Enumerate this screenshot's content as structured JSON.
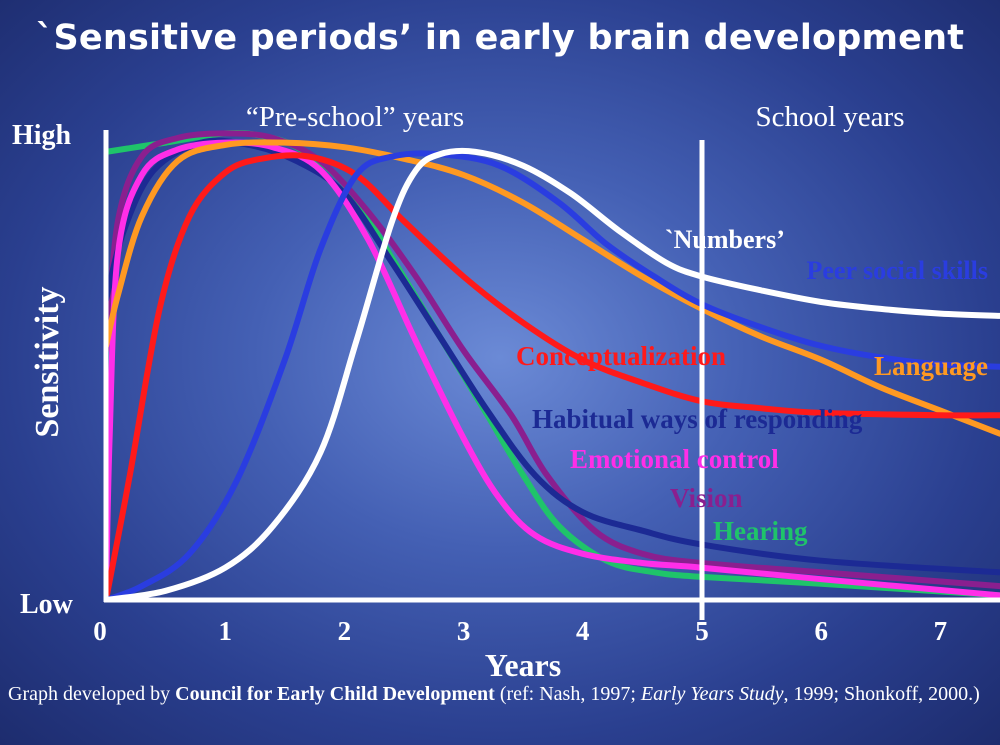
{
  "chart_data": {
    "type": "line",
    "title": "`Sensitive periods’ in early brain development",
    "xlabel": "Years",
    "ylabel": "Sensitivity",
    "x_ticks": [
      "0",
      "1",
      "2",
      "3",
      "4",
      "5",
      "6",
      "7"
    ],
    "xlim": [
      0,
      7.5
    ],
    "ylim": [
      0,
      100
    ],
    "y_ticks": [
      "Low",
      "High"
    ],
    "regions": {
      "preschool": "“Pre-school” years",
      "school": "School years",
      "divider_x": 5
    },
    "series": [
      {
        "name": "Hearing",
        "label": "Hearing",
        "color": "#1fc46a",
        "points": [
          [
            0,
            97
          ],
          [
            0.5,
            99
          ],
          [
            1,
            101
          ],
          [
            1.3,
            100.5
          ],
          [
            1.6,
            98
          ],
          [
            2,
            90
          ],
          [
            2.4,
            74
          ],
          [
            2.8,
            57
          ],
          [
            3.2,
            40
          ],
          [
            3.5,
            27
          ],
          [
            3.8,
            16
          ],
          [
            4.2,
            8.5
          ],
          [
            4.6,
            6
          ],
          [
            5,
            5
          ],
          [
            6,
            3.5
          ],
          [
            7.5,
            1
          ]
        ]
      },
      {
        "name": "Vision",
        "label": "Vision",
        "color": "#8a1f8f",
        "points": [
          [
            0,
            54
          ],
          [
            0.1,
            82
          ],
          [
            0.3,
            96
          ],
          [
            0.6,
            100
          ],
          [
            1,
            101
          ],
          [
            1.4,
            100
          ],
          [
            1.8,
            95
          ],
          [
            2.2,
            84
          ],
          [
            2.6,
            70
          ],
          [
            3,
            54
          ],
          [
            3.4,
            40
          ],
          [
            3.7,
            27
          ],
          [
            4.1,
            15
          ],
          [
            4.5,
            10
          ],
          [
            5,
            8
          ],
          [
            6,
            6
          ],
          [
            7.5,
            3
          ]
        ]
      },
      {
        "name": "Habitual ways of responding",
        "label": "Habitual ways of responding",
        "color": "#1c2a94",
        "points": [
          [
            0,
            65
          ],
          [
            0.15,
            80
          ],
          [
            0.4,
            93
          ],
          [
            0.8,
            99
          ],
          [
            1.2,
            98.5
          ],
          [
            1.6,
            95
          ],
          [
            2,
            88
          ],
          [
            2.4,
            73
          ],
          [
            2.8,
            57
          ],
          [
            3.2,
            41
          ],
          [
            3.6,
            27
          ],
          [
            4,
            19
          ],
          [
            4.5,
            15
          ],
          [
            5,
            12
          ],
          [
            6,
            8.5
          ],
          [
            7.5,
            6
          ]
        ]
      },
      {
        "name": "Emotional control",
        "label": "Emotional control",
        "color": "#ff2ee8",
        "points": [
          [
            0,
            0
          ],
          [
            0.03,
            35
          ],
          [
            0.1,
            75
          ],
          [
            0.3,
            92
          ],
          [
            0.6,
            97.5
          ],
          [
            1,
            99
          ],
          [
            1.4,
            98
          ],
          [
            1.8,
            93
          ],
          [
            2.2,
            78
          ],
          [
            2.6,
            56
          ],
          [
            3,
            35
          ],
          [
            3.3,
            22
          ],
          [
            3.6,
            14
          ],
          [
            4,
            10
          ],
          [
            4.5,
            8
          ],
          [
            5,
            7
          ],
          [
            6,
            4.5
          ],
          [
            7.5,
            1
          ]
        ]
      },
      {
        "name": "Language",
        "label": "Language",
        "color": "#ff9922",
        "points": [
          [
            0,
            55
          ],
          [
            0.1,
            66
          ],
          [
            0.3,
            83
          ],
          [
            0.6,
            95
          ],
          [
            1,
            98.5
          ],
          [
            1.5,
            99
          ],
          [
            2,
            98
          ],
          [
            2.5,
            95.5
          ],
          [
            3,
            92
          ],
          [
            3.5,
            86
          ],
          [
            4,
            78
          ],
          [
            4.5,
            70
          ],
          [
            5,
            63
          ],
          [
            5.5,
            57
          ],
          [
            6,
            52
          ],
          [
            6.5,
            46
          ],
          [
            7,
            41
          ],
          [
            7.5,
            36
          ]
        ]
      },
      {
        "name": "Conceptualization",
        "label": "Conceptualization",
        "color": "#ff1a1a",
        "points": [
          [
            0,
            0
          ],
          [
            0.2,
            27
          ],
          [
            0.45,
            63
          ],
          [
            0.7,
            83
          ],
          [
            1,
            92.5
          ],
          [
            1.3,
            95.5
          ],
          [
            1.7,
            96
          ],
          [
            2.1,
            92
          ],
          [
            2.5,
            82
          ],
          [
            3,
            70
          ],
          [
            3.5,
            60
          ],
          [
            4,
            52
          ],
          [
            4.5,
            47
          ],
          [
            5,
            43
          ],
          [
            5.5,
            41.5
          ],
          [
            6,
            40.5
          ],
          [
            7,
            40
          ],
          [
            7.5,
            40
          ]
        ]
      },
      {
        "name": "Peer social skills",
        "label": "Peer social skills",
        "color": "#2a3de0",
        "points": [
          [
            0,
            0
          ],
          [
            0.3,
            3
          ],
          [
            0.7,
            10
          ],
          [
            1.1,
            26
          ],
          [
            1.5,
            52
          ],
          [
            1.8,
            76
          ],
          [
            2.1,
            92
          ],
          [
            2.4,
            96
          ],
          [
            2.8,
            96.5
          ],
          [
            3.3,
            94
          ],
          [
            3.8,
            86
          ],
          [
            4.2,
            77
          ],
          [
            4.6,
            70
          ],
          [
            5,
            64
          ],
          [
            5.5,
            59
          ],
          [
            6,
            55
          ],
          [
            6.5,
            52.5
          ],
          [
            7,
            51
          ],
          [
            7.5,
            50.5
          ]
        ]
      },
      {
        "name": "`Numbers’",
        "label": "`Numbers’",
        "color": "#ffffff",
        "points": [
          [
            0,
            0
          ],
          [
            0.5,
            2
          ],
          [
            1,
            7
          ],
          [
            1.4,
            16
          ],
          [
            1.8,
            32
          ],
          [
            2.1,
            56
          ],
          [
            2.4,
            82
          ],
          [
            2.6,
            93
          ],
          [
            2.8,
            96.5
          ],
          [
            3.1,
            97
          ],
          [
            3.5,
            94
          ],
          [
            3.9,
            88
          ],
          [
            4.3,
            80
          ],
          [
            4.7,
            73
          ],
          [
            5,
            70
          ],
          [
            5.5,
            67
          ],
          [
            6,
            64.5
          ],
          [
            6.5,
            63
          ],
          [
            7,
            62
          ],
          [
            7.5,
            61.5
          ]
        ]
      }
    ]
  },
  "caption": {
    "prefix": "Graph developed by ",
    "organization": "Council for Early Child Development",
    "ref_open": " (ref: Nash, 1997; ",
    "book": "Early Years Study",
    "ref_close": ", 1999; Shonkoff, 2000.)"
  }
}
